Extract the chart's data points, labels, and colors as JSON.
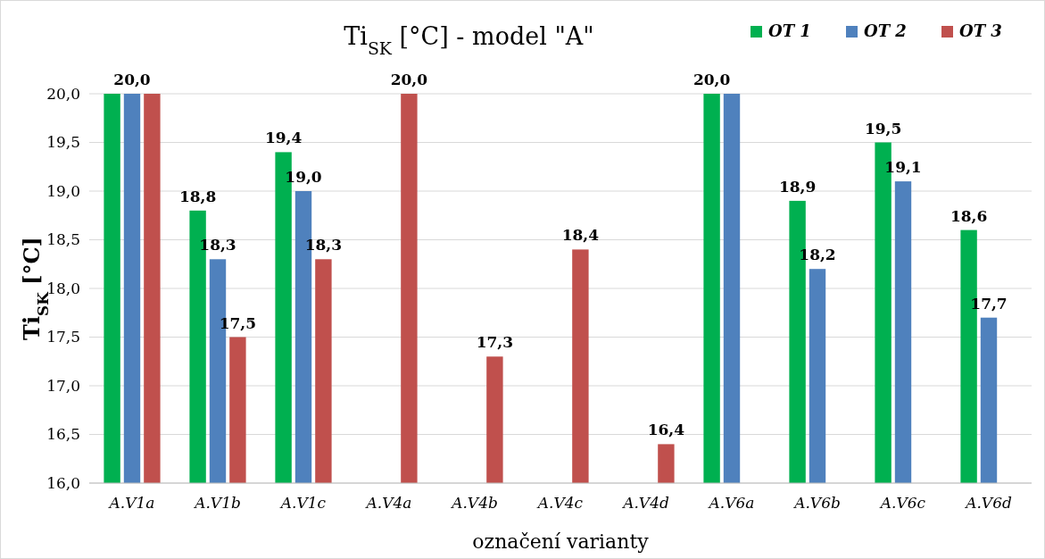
{
  "chart_data": {
    "type": "bar",
    "title": "Ti$_{SK}$ [°C] - model \"A\"",
    "xlabel": "označení varianty",
    "ylabel": "Ti$_{SK}$ [°C]",
    "categories": [
      "A.V1a",
      "A.V1b",
      "A.V1c",
      "A.V4a",
      "A.V4b",
      "A.V4c",
      "A.V4d",
      "A.V6a",
      "A.V6b",
      "A.V6c",
      "A.V6d"
    ],
    "series": [
      {
        "name": "OT 1",
        "color": "#00b050",
        "values": [
          20,
          18.8,
          19.4,
          null,
          null,
          null,
          null,
          20,
          18.9,
          19.5,
          18.6
        ],
        "value_labels": [
          null,
          "18,8",
          "19,4",
          null,
          null,
          null,
          null,
          "20,0",
          "18,9",
          "19,5",
          "18,6"
        ]
      },
      {
        "name": "OT 2",
        "color": "#4f81bd",
        "values": [
          20,
          18.3,
          19.0,
          null,
          null,
          null,
          null,
          20,
          18.2,
          19.1,
          17.7
        ],
        "value_labels": [
          "20,0",
          "18,3",
          "19,0",
          null,
          null,
          null,
          null,
          null,
          "18,2",
          "19,1",
          "17,7"
        ]
      },
      {
        "name": "OT 3",
        "color": "#c0504d",
        "values": [
          20,
          17.5,
          18.3,
          20,
          17.3,
          18.4,
          16.4,
          null,
          null,
          null,
          null
        ],
        "value_labels": [
          null,
          "17,5",
          "18,3",
          "20,0",
          "17,3",
          "18,4",
          "16,4",
          null,
          null,
          null,
          null
        ]
      }
    ],
    "ylim": [
      16,
      20
    ],
    "yticks": [
      {
        "value": 16,
        "label": "16,0"
      },
      {
        "value": 16.5,
        "label": "16,5"
      },
      {
        "value": 17,
        "label": "17,0"
      },
      {
        "value": 17.5,
        "label": "17,5"
      },
      {
        "value": 18,
        "label": "18,0"
      },
      {
        "value": 18.5,
        "label": "18,5"
      },
      {
        "value": 19,
        "label": "19,0"
      },
      {
        "value": 19.5,
        "label": "19,5"
      },
      {
        "value": 20,
        "label": "20,0"
      }
    ],
    "grid": "y",
    "legend": "top right"
  }
}
